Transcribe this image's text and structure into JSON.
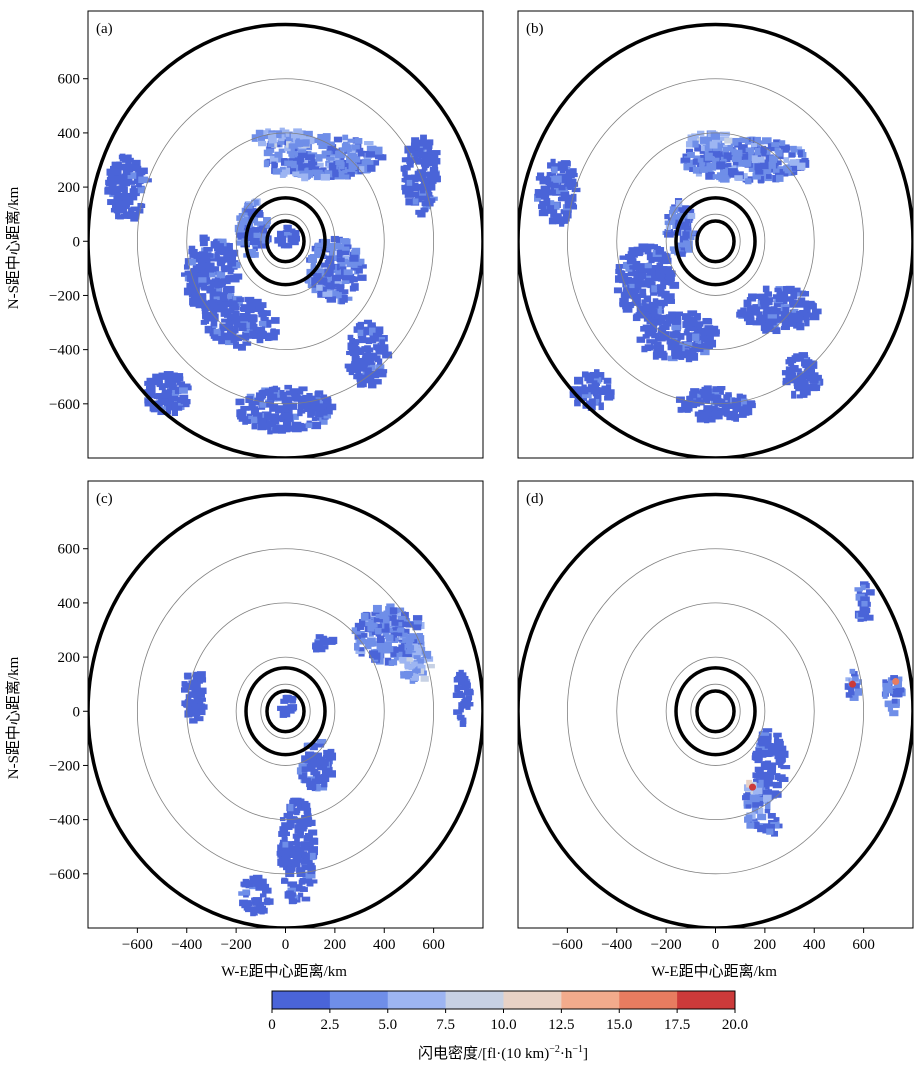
{
  "figure": {
    "ylabel": "N-S距中心距离/km",
    "xlabel": "W-E距中心距离/km",
    "colorbar_label": "闪电密度/[fl·(10 km)",
    "colorbar_label_sup1": "−2",
    "colorbar_label_mid": "·h",
    "colorbar_label_sup2": "−1",
    "colorbar_label_end": "]"
  },
  "colors": {
    "levels": [
      "#4a64d8",
      "#6f8ee8",
      "#9db5f2",
      "#c7d1e4",
      "#e8d2c6",
      "#f2ab8c",
      "#e87c60",
      "#cc3a3a"
    ]
  },
  "chart_data": [
    {
      "type": "heatmap",
      "panel": "(a)",
      "xlim": [
        -800,
        800
      ],
      "ylim": [
        -800,
        850
      ],
      "yticks": [
        -600,
        -400,
        -200,
        0,
        200,
        400,
        600
      ],
      "xticks": [
        -600,
        -400,
        -200,
        0,
        200,
        400,
        600
      ],
      "show_yticks": true,
      "show_xticks": false,
      "rings_km": [
        100,
        200,
        400,
        600
      ],
      "thick_rings_km": [
        75,
        160,
        800
      ],
      "blobs": [
        {
          "x": 150,
          "y": 310,
          "rx": 250,
          "ry": 80,
          "v": 2
        },
        {
          "x": -10,
          "y": 380,
          "rx": 120,
          "ry": 35,
          "v": 3
        },
        {
          "x": -300,
          "y": -120,
          "rx": 110,
          "ry": 140,
          "v": 1
        },
        {
          "x": -180,
          "y": -300,
          "rx": 150,
          "ry": 90,
          "v": 1
        },
        {
          "x": 200,
          "y": -110,
          "rx": 110,
          "ry": 120,
          "v": 2
        },
        {
          "x": -130,
          "y": 40,
          "rx": 60,
          "ry": 110,
          "v": 2
        },
        {
          "x": 10,
          "y": 10,
          "rx": 40,
          "ry": 40,
          "v": 1
        },
        {
          "x": -640,
          "y": 200,
          "rx": 80,
          "ry": 120,
          "v": 1
        },
        {
          "x": 0,
          "y": -620,
          "rx": 200,
          "ry": 80,
          "v": 1
        },
        {
          "x": 330,
          "y": -420,
          "rx": 80,
          "ry": 120,
          "v": 1
        },
        {
          "x": 550,
          "y": 250,
          "rx": 70,
          "ry": 150,
          "v": 1
        },
        {
          "x": -480,
          "y": -560,
          "rx": 90,
          "ry": 80,
          "v": 1
        }
      ]
    },
    {
      "type": "heatmap",
      "panel": "(b)",
      "xlim": [
        -800,
        800
      ],
      "ylim": [
        -800,
        850
      ],
      "yticks": [
        -600,
        -400,
        -200,
        0,
        200,
        400,
        600
      ],
      "xticks": [
        -600,
        -400,
        -200,
        0,
        200,
        400,
        600
      ],
      "show_yticks": false,
      "show_xticks": false,
      "rings_km": [
        100,
        200,
        400,
        600
      ],
      "thick_rings_km": [
        75,
        160,
        800
      ],
      "blobs": [
        {
          "x": 120,
          "y": 300,
          "rx": 250,
          "ry": 80,
          "v": 2
        },
        {
          "x": -20,
          "y": 370,
          "rx": 100,
          "ry": 30,
          "v": 3
        },
        {
          "x": -280,
          "y": -150,
          "rx": 120,
          "ry": 140,
          "v": 1
        },
        {
          "x": -150,
          "y": -350,
          "rx": 160,
          "ry": 90,
          "v": 1
        },
        {
          "x": 250,
          "y": -250,
          "rx": 160,
          "ry": 80,
          "v": 1
        },
        {
          "x": -140,
          "y": 50,
          "rx": 60,
          "ry": 100,
          "v": 2
        },
        {
          "x": -640,
          "y": 180,
          "rx": 80,
          "ry": 120,
          "v": 1
        },
        {
          "x": 0,
          "y": -600,
          "rx": 150,
          "ry": 60,
          "v": 1
        },
        {
          "x": -500,
          "y": -550,
          "rx": 80,
          "ry": 70,
          "v": 1
        },
        {
          "x": 350,
          "y": -500,
          "rx": 70,
          "ry": 80,
          "v": 1
        }
      ]
    },
    {
      "type": "heatmap",
      "panel": "(c)",
      "xlim": [
        -800,
        800
      ],
      "ylim": [
        -800,
        850
      ],
      "yticks": [
        -600,
        -400,
        -200,
        0,
        200,
        400,
        600
      ],
      "xticks": [
        -600,
        -400,
        -200,
        0,
        200,
        400,
        600
      ],
      "show_yticks": true,
      "show_xticks": true,
      "rings_km": [
        100,
        200,
        400,
        600
      ],
      "thick_rings_km": [
        75,
        160,
        800
      ],
      "blobs": [
        {
          "x": 420,
          "y": 280,
          "rx": 140,
          "ry": 110,
          "v": 2
        },
        {
          "x": 530,
          "y": 170,
          "rx": 60,
          "ry": 70,
          "v": 3
        },
        {
          "x": 50,
          "y": -520,
          "rx": 70,
          "ry": 200,
          "v": 1
        },
        {
          "x": 130,
          "y": -200,
          "rx": 70,
          "ry": 90,
          "v": 1
        },
        {
          "x": -370,
          "y": 50,
          "rx": 40,
          "ry": 120,
          "v": 1
        },
        {
          "x": 10,
          "y": 20,
          "rx": 35,
          "ry": 35,
          "v": 1
        },
        {
          "x": -120,
          "y": -680,
          "rx": 60,
          "ry": 70,
          "v": 1
        },
        {
          "x": 720,
          "y": 50,
          "rx": 30,
          "ry": 100,
          "v": 1
        },
        {
          "x": 150,
          "y": 250,
          "rx": 50,
          "ry": 25,
          "v": 1
        }
      ]
    },
    {
      "type": "heatmap",
      "panel": "(d)",
      "xlim": [
        -800,
        800
      ],
      "ylim": [
        -800,
        850
      ],
      "yticks": [
        -600,
        -400,
        -200,
        0,
        200,
        400,
        600
      ],
      "xticks": [
        -600,
        -400,
        -200,
        0,
        200,
        400,
        600
      ],
      "show_yticks": false,
      "show_xticks": true,
      "rings_km": [
        100,
        200,
        400,
        600
      ],
      "thick_rings_km": [
        75,
        160,
        800
      ],
      "blobs": [
        {
          "x": 220,
          "y": -200,
          "rx": 60,
          "ry": 130,
          "v": 1
        },
        {
          "x": 170,
          "y": -350,
          "rx": 50,
          "ry": 90,
          "v": 2
        },
        {
          "x": 150,
          "y": -280,
          "rx": 20,
          "ry": 30,
          "v": 4
        },
        {
          "x": 560,
          "y": 100,
          "rx": 30,
          "ry": 50,
          "v": 2
        },
        {
          "x": 720,
          "y": 60,
          "rx": 35,
          "ry": 80,
          "v": 2
        },
        {
          "x": 600,
          "y": 400,
          "rx": 30,
          "ry": 80,
          "v": 1
        },
        {
          "x": 230,
          "y": -420,
          "rx": 30,
          "ry": 40,
          "v": 1
        }
      ],
      "hotspots": [
        {
          "x": 555,
          "y": 100,
          "v": 7
        },
        {
          "x": 730,
          "y": 110,
          "v": 6
        },
        {
          "x": 150,
          "y": -280,
          "v": 7
        }
      ]
    }
  ],
  "colorbar": {
    "ticks": [
      "0",
      "2.5",
      "5.0",
      "7.5",
      "10.0",
      "12.5",
      "15.0",
      "17.5",
      "20.0"
    ]
  }
}
